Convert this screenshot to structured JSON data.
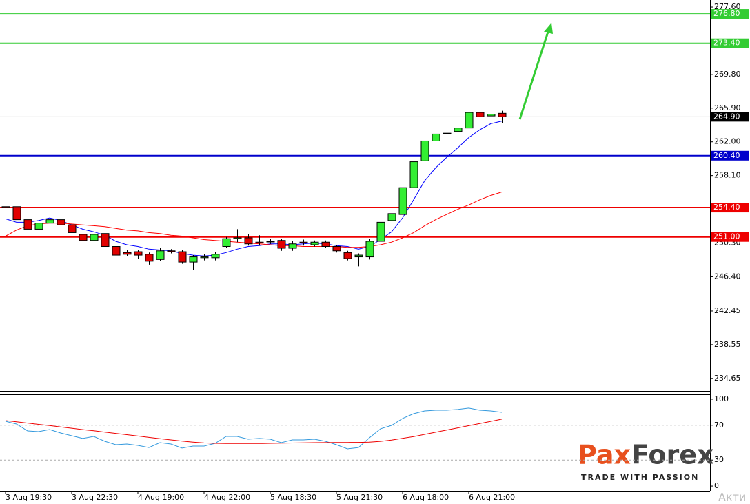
{
  "chart_data": [
    {
      "type": "candlestick",
      "categories": [
        "3 Aug 19:30",
        null,
        null,
        null,
        null,
        null,
        "3 Aug 22:30",
        null,
        null,
        null,
        null,
        null,
        "4 Aug 19:00",
        null,
        null,
        null,
        null,
        null,
        "4 Aug 22:00",
        null,
        null,
        null,
        null,
        null,
        "5 Aug 18:30",
        null,
        null,
        null,
        null,
        null,
        "5 Aug 21:30",
        null,
        null,
        null,
        null,
        null,
        "6 Aug 18:00",
        null,
        null,
        null,
        null,
        null,
        "6 Aug 21:00",
        null,
        null,
        null
      ],
      "open": [
        254.5,
        254.5,
        253.0,
        251.9,
        252.6,
        253.0,
        252.4,
        251.3,
        250.6,
        251.4,
        249.9,
        249.2,
        249.3,
        249.0,
        248.4,
        249.4,
        249.3,
        248.1,
        248.6,
        248.6,
        249.9,
        250.8,
        250.9,
        250.4,
        250.5,
        250.6,
        249.7,
        250.4,
        250.1,
        250.4,
        249.9,
        249.2,
        248.7,
        248.7,
        250.5,
        252.9,
        253.6,
        256.7,
        259.8,
        262.1,
        263.0,
        263.2,
        263.6,
        265.4,
        265.0,
        265.3
      ],
      "high": [
        254.6,
        254.6,
        253.1,
        252.8,
        253.3,
        253.2,
        252.7,
        251.5,
        252.0,
        251.6,
        250.2,
        249.5,
        249.5,
        249.2,
        249.7,
        249.6,
        249.5,
        248.9,
        249.0,
        249.3,
        251.0,
        251.9,
        251.3,
        251.2,
        250.8,
        250.8,
        250.5,
        250.7,
        250.6,
        250.6,
        250.1,
        249.4,
        249.1,
        250.8,
        253.0,
        254.2,
        257.5,
        260.4,
        263.3,
        263.0,
        263.7,
        264.3,
        265.7,
        265.9,
        266.2,
        265.6
      ],
      "low": [
        254.3,
        252.9,
        251.6,
        251.7,
        252.4,
        251.4,
        251.3,
        250.4,
        250.5,
        249.7,
        248.7,
        248.8,
        248.5,
        247.8,
        248.2,
        249.1,
        247.9,
        247.2,
        248.3,
        248.3,
        249.7,
        250.4,
        250.0,
        250.0,
        250.2,
        249.4,
        249.4,
        250.0,
        249.9,
        249.7,
        249.2,
        248.3,
        247.6,
        248.4,
        250.3,
        252.7,
        253.5,
        256.5,
        259.6,
        260.9,
        262.4,
        262.5,
        263.4,
        264.6,
        264.7,
        264.2
      ],
      "close": [
        254.4,
        253.0,
        251.9,
        252.6,
        253.0,
        252.4,
        251.5,
        250.6,
        251.3,
        249.9,
        248.9,
        249.0,
        248.9,
        248.2,
        249.4,
        249.3,
        248.1,
        248.7,
        248.7,
        249.0,
        250.8,
        250.9,
        250.2,
        250.3,
        250.5,
        249.7,
        250.2,
        250.3,
        250.4,
        249.9,
        249.4,
        248.5,
        248.9,
        250.5,
        252.7,
        253.7,
        256.7,
        259.7,
        262.1,
        262.9,
        263.0,
        263.6,
        265.4,
        264.9,
        265.2,
        264.9
      ],
      "up_color": "#33ee33",
      "down_color": "#e00000",
      "series": [
        {
          "color": "#0000ff",
          "values": [
            253.1,
            252.7,
            252.7,
            252.9,
            253.2,
            252.9,
            252.4,
            251.9,
            251.6,
            251.2,
            250.5,
            250.1,
            249.9,
            249.6,
            249.5,
            249.4,
            249.1,
            248.9,
            248.8,
            248.9,
            249.2,
            249.6,
            249.9,
            250.0,
            250.2,
            250.2,
            250.1,
            250.2,
            250.3,
            250.2,
            250.0,
            249.9,
            249.6,
            249.9,
            250.7,
            251.6,
            253.2,
            255.3,
            257.5,
            259.0,
            260.2,
            261.3,
            262.5,
            263.4,
            264.1,
            264.4
          ]
        },
        {
          "color": "#ff0000",
          "values": [
            251.1,
            251.8,
            252.3,
            252.5,
            252.6,
            252.6,
            252.5,
            252.4,
            252.3,
            252.2,
            252.0,
            251.8,
            251.7,
            251.5,
            251.4,
            251.2,
            251.1,
            250.9,
            250.7,
            250.6,
            250.5,
            250.4,
            250.3,
            250.2,
            250.1,
            250.0,
            250.0,
            249.9,
            249.9,
            249.9,
            249.9,
            249.8,
            249.8,
            249.9,
            250.1,
            250.4,
            250.9,
            251.5,
            252.3,
            253.0,
            253.6,
            254.2,
            254.7,
            255.3,
            255.8,
            256.2
          ]
        }
      ],
      "ylim": [
        233.2,
        278.4
      ],
      "yticks": [
        {
          "value": 277.6,
          "label": "277.60"
        },
        {
          "value": 269.8,
          "label": "269.80"
        },
        {
          "value": 265.9,
          "label": "265.90"
        },
        {
          "value": 262.0,
          "label": "262.00"
        },
        {
          "value": 258.1,
          "label": "258.10"
        },
        {
          "value": 250.3,
          "label": "250.30"
        },
        {
          "value": 246.4,
          "label": "246.40"
        },
        {
          "value": 242.45,
          "label": "242.45"
        },
        {
          "value": 238.55,
          "label": "238.55"
        },
        {
          "value": 234.65,
          "label": "234.65"
        }
      ],
      "levels": [
        {
          "value": 276.8,
          "label": "276.80",
          "color": "#33cc33"
        },
        {
          "value": 273.4,
          "label": "273.40",
          "color": "#33cc33"
        },
        {
          "value": 260.4,
          "label": "260.40",
          "color": "#0000cc"
        },
        {
          "value": 254.4,
          "label": "254.40",
          "color": "#ee0000"
        },
        {
          "value": 251.0,
          "label": "251.00",
          "color": "#ee0000"
        }
      ],
      "last": {
        "value": 264.9,
        "label": "264.90",
        "color": "#000000"
      }
    },
    {
      "type": "line",
      "series": [
        {
          "color": "#3399dd",
          "values": [
            74.6,
            71.4,
            63.5,
            62.7,
            65.1,
            61.1,
            57.9,
            54.8,
            57.1,
            51.6,
            47.6,
            48.4,
            46.8,
            44.4,
            50.0,
            48.4,
            43.7,
            46.0,
            46.0,
            49.2,
            57.1,
            57.1,
            54.0,
            54.8,
            54.0,
            50.0,
            53.2,
            53.2,
            54.0,
            51.6,
            47.6,
            42.9,
            44.4,
            55.6,
            65.9,
            69.8,
            77.8,
            83.3,
            86.5,
            87.3,
            87.3,
            88.1,
            89.7,
            87.3,
            86.5,
            84.9
          ]
        },
        {
          "color": "#ee0000",
          "values": [
            75.4,
            74.0,
            72.5,
            71.0,
            69.6,
            68.1,
            66.6,
            65.0,
            63.6,
            62.1,
            60.6,
            59.1,
            57.6,
            56.0,
            54.6,
            53.2,
            51.8,
            50.6,
            49.7,
            49.2,
            49.0,
            49.0,
            49.0,
            49.0,
            49.2,
            49.4,
            49.6,
            49.8,
            50.0,
            50.1,
            50.2,
            50.2,
            50.3,
            50.6,
            51.5,
            53.0,
            55.0,
            57.0,
            59.5,
            62.0,
            64.5,
            67.0,
            69.5,
            72.0,
            74.5,
            77.0
          ]
        }
      ],
      "ylim": [
        -5.5,
        105.5
      ],
      "yticks": [
        100,
        70,
        30,
        0
      ],
      "dashed_levels": [
        70,
        30
      ]
    }
  ],
  "logo": {
    "brand_a": "Pax",
    "brand_b": "Forex",
    "tagline": "TRADE WITH PASSION"
  },
  "watermark": "Акти"
}
